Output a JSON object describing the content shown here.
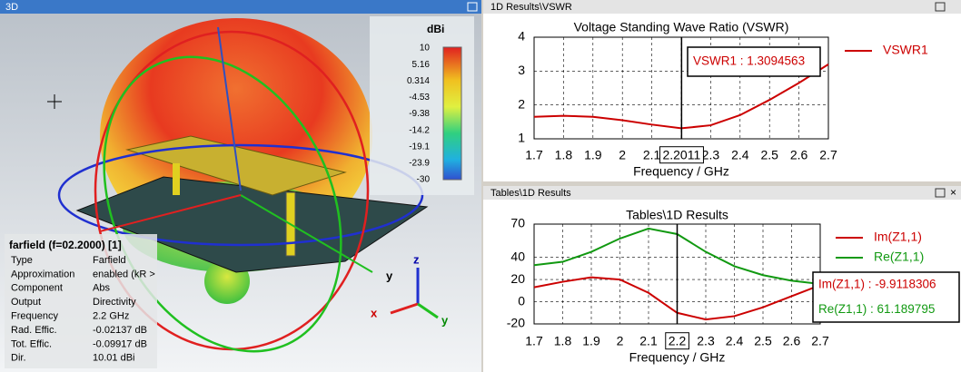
{
  "view3d": {
    "title": "3D",
    "colorbar": {
      "unit": "dBi",
      "labels": [
        "10",
        "5.16",
        "0.314",
        "-4.53",
        "-9.38",
        "-14.2",
        "-19.1",
        "-23.9",
        "-30"
      ]
    },
    "info": {
      "title": "farfield (f=02.2000) [1]",
      "rows": [
        [
          "Type",
          "Farfield"
        ],
        [
          "Approximation",
          "enabled (kR >"
        ],
        [
          "Component",
          "Abs"
        ],
        [
          "Output",
          "Directivity"
        ],
        [
          "Frequency",
          "2.2 GHz"
        ],
        [
          "Rad. Effic.",
          "-0.02137 dB"
        ],
        [
          "Tot. Effic.",
          "-0.09917 dB"
        ],
        [
          "Dir.",
          "10.01 dBi"
        ]
      ]
    },
    "axes": [
      "x",
      "y",
      "z"
    ]
  },
  "panels": {
    "vswr_title": "1D Results\\VSWR",
    "tables_title": "Tables\\1D Results"
  },
  "chart_data": [
    {
      "type": "line",
      "title": "Voltage Standing Wave Ratio (VSWR)",
      "x_label": "Frequency / GHz",
      "x": [
        1.7,
        1.8,
        1.9,
        2.0,
        2.1,
        2.2,
        2.3,
        2.4,
        2.5,
        2.6,
        2.7
      ],
      "series": [
        {
          "name": "VSWR1",
          "color": "#cc0000",
          "values": [
            1.65,
            1.68,
            1.65,
            1.55,
            1.42,
            1.31,
            1.4,
            1.7,
            2.15,
            2.65,
            3.2
          ]
        }
      ],
      "xlim": [
        1.7,
        2.7
      ],
      "xticks": [
        1.7,
        1.8,
        1.9,
        2,
        2.1,
        2.2,
        2.3,
        2.4,
        2.5,
        2.6,
        2.7
      ],
      "ylim": [
        1,
        4
      ],
      "yticks": [
        1,
        2,
        3,
        4
      ],
      "grid": true,
      "marker": {
        "x": 2.2011
      },
      "annotations": [
        "VSWR1 : 1.3094563"
      ]
    },
    {
      "type": "line",
      "title": "Tables\\1D Results",
      "x_label": "Frequency / GHz",
      "x": [
        1.7,
        1.8,
        1.9,
        2.0,
        2.1,
        2.2,
        2.3,
        2.4,
        2.5,
        2.6,
        2.7
      ],
      "series": [
        {
          "name": "Im(Z1,1)",
          "color": "#cc0000",
          "values": [
            13,
            18,
            22,
            20,
            8,
            -10,
            -16,
            -13,
            -5,
            5,
            15
          ]
        },
        {
          "name": "Re(Z1,1)",
          "color": "#119911",
          "values": [
            33,
            36,
            45,
            57,
            66,
            61,
            45,
            32,
            24,
            19,
            16
          ]
        }
      ],
      "xlim": [
        1.7,
        2.7
      ],
      "xticks": [
        1.7,
        1.8,
        1.9,
        2,
        2.1,
        2.2,
        2.3,
        2.4,
        2.5,
        2.6,
        2.7
      ],
      "ylim": [
        -20,
        70
      ],
      "yticks": [
        -20,
        0,
        20,
        40,
        70
      ],
      "grid": true,
      "marker": {
        "x": 2.2
      },
      "annotations": [
        "Im(Z1,1) : -9.9118306",
        "Re(Z1,1) : 61.189795"
      ]
    }
  ]
}
